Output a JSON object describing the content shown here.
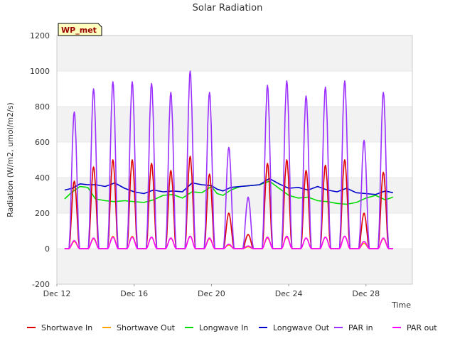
{
  "chart_data": {
    "type": "line",
    "title": "Solar Radiation",
    "xlabel": "Time",
    "ylabel": "Radiation (W/m2, umol/m2/s)",
    "badge": "WP_met",
    "ylim": [
      -200,
      1200
    ],
    "yticks": [
      -200,
      0,
      200,
      400,
      600,
      800,
      1000,
      1200
    ],
    "xlim": [
      12,
      30.4
    ],
    "xticks": [
      {
        "value": 12,
        "label": "Dec 12"
      },
      {
        "value": 16,
        "label": "Dec 16"
      },
      {
        "value": 20,
        "label": "Dec 20"
      },
      {
        "value": 24,
        "label": "Dec 24"
      },
      {
        "value": 28,
        "label": "Dec 28"
      }
    ],
    "grid": "horizontal bands",
    "legend_position": "bottom",
    "daily_peaks": {
      "days": [
        12.9,
        13.9,
        14.9,
        15.9,
        16.9,
        17.9,
        18.9,
        19.9,
        20.9,
        21.9,
        22.9,
        23.9,
        24.9,
        25.9,
        26.9,
        27.9,
        28.9
      ],
      "shortwave_in": [
        380,
        460,
        500,
        500,
        480,
        440,
        520,
        420,
        200,
        80,
        480,
        500,
        440,
        470,
        500,
        200,
        430
      ],
      "shortwave_out": [
        40,
        55,
        70,
        70,
        65,
        60,
        70,
        55,
        20,
        10,
        60,
        65,
        60,
        65,
        70,
        30,
        55
      ],
      "par_in": [
        770,
        900,
        940,
        940,
        930,
        880,
        1000,
        880,
        570,
        290,
        920,
        945,
        860,
        910,
        945,
        610,
        880
      ],
      "par_out": [
        45,
        60,
        65,
        65,
        65,
        60,
        70,
        60,
        25,
        15,
        65,
        70,
        60,
        65,
        70,
        40,
        60
      ]
    },
    "series": [
      {
        "name": "Shortwave In",
        "color": "#dd0000",
        "x": [],
        "y": []
      },
      {
        "name": "Shortwave Out",
        "color": "#ffa500",
        "x": [],
        "y": []
      },
      {
        "name": "Longwave In",
        "color": "#00dd00",
        "x": [
          12.4,
          12.8,
          13.2,
          13.6,
          14.0,
          14.5,
          15.0,
          15.5,
          16.0,
          16.5,
          17.0,
          17.5,
          18.0,
          18.5,
          19.0,
          19.5,
          20.0,
          20.3,
          20.6,
          21.0,
          21.5,
          22.0,
          22.5,
          23.0,
          23.5,
          24.0,
          24.5,
          25.0,
          25.5,
          26.0,
          26.5,
          27.0,
          27.5,
          28.0,
          28.5,
          29.0,
          29.4
        ],
        "y": [
          280,
          320,
          350,
          345,
          280,
          270,
          265,
          270,
          265,
          260,
          275,
          300,
          305,
          285,
          320,
          315,
          350,
          310,
          300,
          330,
          350,
          355,
          360,
          380,
          340,
          300,
          285,
          290,
          270,
          265,
          255,
          250,
          260,
          285,
          300,
          275,
          290
        ]
      },
      {
        "name": "Longwave Out",
        "color": "#0000cc",
        "x": [
          12.4,
          12.8,
          13.2,
          13.6,
          14.0,
          14.5,
          15.0,
          15.5,
          16.0,
          16.5,
          17.0,
          17.5,
          18.0,
          18.5,
          19.0,
          19.5,
          20.0,
          20.3,
          20.6,
          21.0,
          21.5,
          22.0,
          22.5,
          23.0,
          23.5,
          24.0,
          24.5,
          25.0,
          25.5,
          26.0,
          26.5,
          27.0,
          27.5,
          28.0,
          28.5,
          29.0,
          29.4
        ],
        "y": [
          330,
          340,
          365,
          360,
          360,
          350,
          370,
          340,
          320,
          310,
          330,
          320,
          325,
          320,
          370,
          360,
          355,
          335,
          325,
          345,
          350,
          355,
          360,
          395,
          365,
          340,
          345,
          330,
          350,
          330,
          320,
          340,
          315,
          310,
          305,
          325,
          315
        ]
      },
      {
        "name": "PAR in",
        "color": "#9b30ff",
        "x": [],
        "y": []
      },
      {
        "name": "PAR out",
        "color": "#ff00ff",
        "x": [],
        "y": []
      }
    ]
  }
}
